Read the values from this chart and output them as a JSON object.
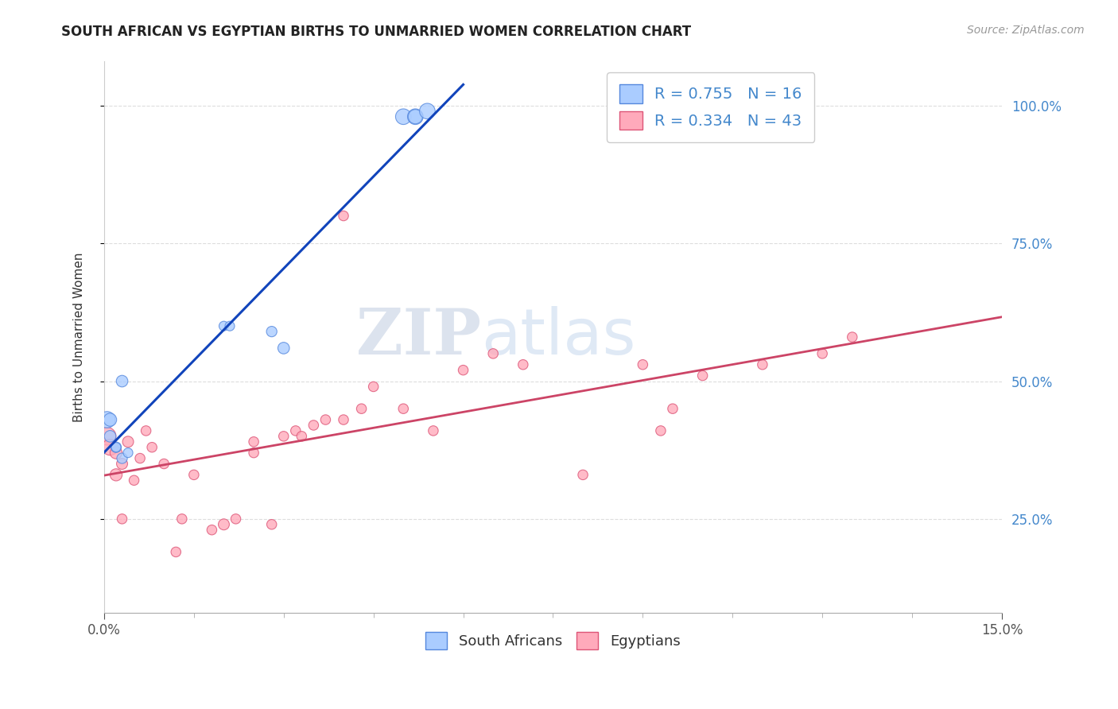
{
  "title": "SOUTH AFRICAN VS EGYPTIAN BIRTHS TO UNMARRIED WOMEN CORRELATION CHART",
  "source": "Source: ZipAtlas.com",
  "ylabel": "Births to Unmarried Women",
  "xlim": [
    0.0,
    0.15
  ],
  "ylim": [
    0.08,
    1.08
  ],
  "ytick_positions": [
    0.25,
    0.5,
    0.75,
    1.0
  ],
  "south_african_x": [
    0.0005,
    0.001,
    0.001,
    0.002,
    0.002,
    0.003,
    0.003,
    0.004,
    0.02,
    0.021,
    0.028,
    0.03,
    0.05,
    0.052,
    0.052,
    0.054
  ],
  "south_african_y": [
    0.43,
    0.43,
    0.4,
    0.38,
    0.38,
    0.36,
    0.5,
    0.37,
    0.6,
    0.6,
    0.59,
    0.56,
    0.98,
    0.98,
    0.98,
    0.99
  ],
  "south_african_sizes": [
    220,
    140,
    110,
    90,
    75,
    90,
    110,
    75,
    75,
    75,
    90,
    110,
    200,
    200,
    170,
    200
  ],
  "egyptian_x": [
    0.0005,
    0.001,
    0.002,
    0.002,
    0.003,
    0.003,
    0.004,
    0.005,
    0.006,
    0.007,
    0.008,
    0.01,
    0.012,
    0.013,
    0.015,
    0.018,
    0.02,
    0.022,
    0.025,
    0.025,
    0.028,
    0.03,
    0.032,
    0.033,
    0.035,
    0.037,
    0.04,
    0.043,
    0.045,
    0.05,
    0.055,
    0.06,
    0.065,
    0.07,
    0.08,
    0.09,
    0.095,
    0.1,
    0.11,
    0.12,
    0.125,
    0.093,
    0.04
  ],
  "egyptian_y": [
    0.4,
    0.38,
    0.33,
    0.37,
    0.35,
    0.25,
    0.39,
    0.32,
    0.36,
    0.41,
    0.38,
    0.35,
    0.19,
    0.25,
    0.33,
    0.23,
    0.24,
    0.25,
    0.37,
    0.39,
    0.24,
    0.4,
    0.41,
    0.4,
    0.42,
    0.43,
    0.43,
    0.45,
    0.49,
    0.45,
    0.41,
    0.52,
    0.55,
    0.53,
    0.33,
    0.53,
    0.45,
    0.51,
    0.53,
    0.55,
    0.58,
    0.41,
    0.8
  ],
  "egyptian_sizes": [
    260,
    210,
    120,
    120,
    100,
    80,
    100,
    80,
    80,
    80,
    80,
    80,
    80,
    80,
    80,
    80,
    100,
    80,
    80,
    80,
    80,
    80,
    80,
    80,
    80,
    80,
    80,
    80,
    80,
    80,
    80,
    80,
    80,
    80,
    80,
    80,
    80,
    80,
    80,
    80,
    80,
    80,
    80
  ],
  "sa_color": "#aaccff",
  "sa_edge_color": "#5588dd",
  "eg_color": "#ffaabb",
  "eg_edge_color": "#dd5577",
  "sa_line_color": "#1144bb",
  "eg_line_color": "#cc4466",
  "legend_sa_label": "R = 0.755   N = 16",
  "legend_eg_label": "R = 0.334   N = 43",
  "bottom_legend_sa": "South Africans",
  "bottom_legend_eg": "Egyptians",
  "watermark_zip": "ZIP",
  "watermark_atlas": "atlas",
  "background_color": "#ffffff",
  "grid_color": "#dddddd"
}
